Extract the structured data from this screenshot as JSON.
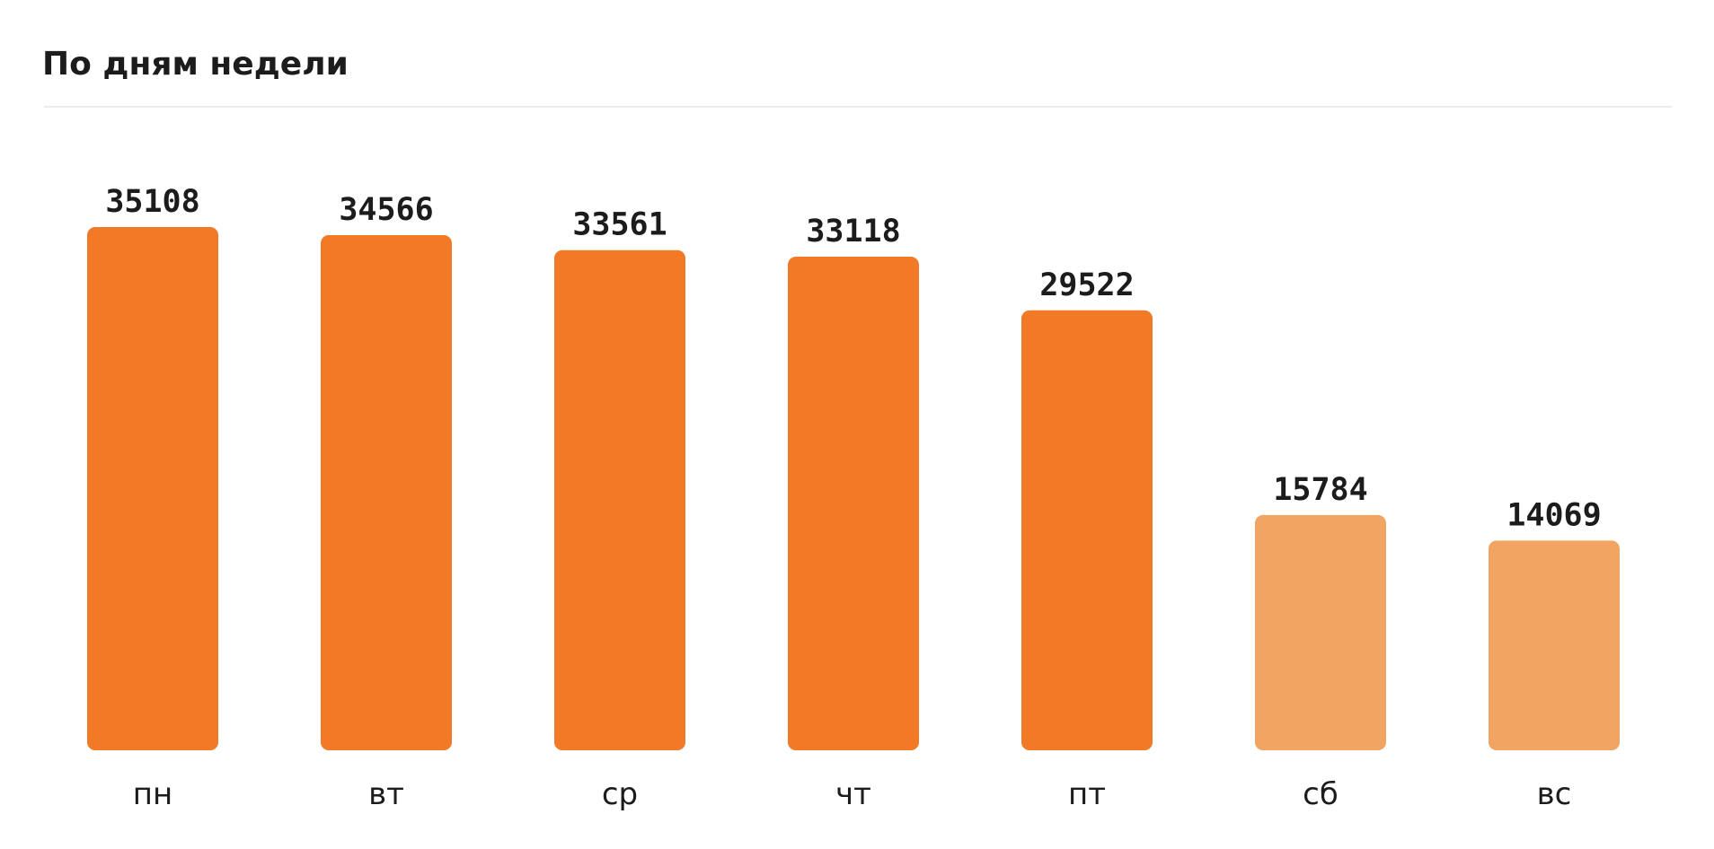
{
  "title": "По дням недели",
  "colors": {
    "weekday": "#F27A27",
    "weekend": "#F2A462"
  },
  "chart_data": {
    "type": "bar",
    "title": "По дням недели",
    "categories": [
      "пн",
      "вт",
      "ср",
      "чт",
      "пт",
      "сб",
      "вс"
    ],
    "values": [
      35108,
      34566,
      33561,
      33118,
      29522,
      15784,
      14069
    ],
    "weekend": [
      false,
      false,
      false,
      false,
      false,
      true,
      true
    ],
    "value_labels": true,
    "grid": false,
    "legend": "none",
    "ylim": [
      0,
      35108
    ]
  }
}
